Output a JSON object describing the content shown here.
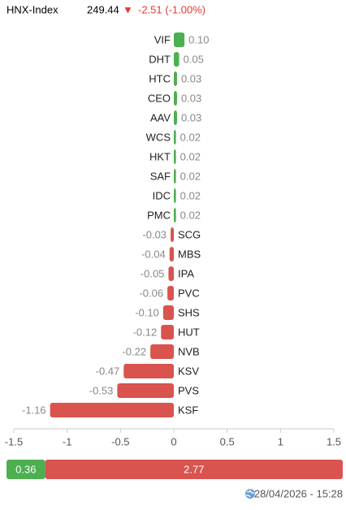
{
  "header": {
    "index_name": "HNX-Index",
    "value": "249.44",
    "arrow": "▼",
    "change": "-2.51 (-1.00%)"
  },
  "chart_data": {
    "type": "bar",
    "orientation": "horizontal",
    "categories": [
      "VIF",
      "DHT",
      "HTC",
      "CEO",
      "AAV",
      "WCS",
      "HKT",
      "SAF",
      "IDC",
      "PMC",
      "SCG",
      "MBS",
      "IPA",
      "PVC",
      "SHS",
      "HUT",
      "NVB",
      "KSV",
      "PVS",
      "KSF"
    ],
    "values": [
      0.1,
      0.05,
      0.03,
      0.03,
      0.03,
      0.02,
      0.02,
      0.02,
      0.02,
      0.02,
      -0.03,
      -0.04,
      -0.05,
      -0.06,
      -0.1,
      -0.12,
      -0.22,
      -0.47,
      -0.53,
      -1.16
    ],
    "value_labels": [
      "0.10",
      "0.05",
      "0.03",
      "0.03",
      "0.03",
      "0.02",
      "0.02",
      "0.02",
      "0.02",
      "0.02",
      "-0.03",
      "-0.04",
      "-0.05",
      "-0.06",
      "-0.10",
      "-0.12",
      "-0.22",
      "-0.47",
      "-0.53",
      "-1.16"
    ],
    "color_positive": "#4caf50",
    "color_negative": "#d9534f",
    "xlim": [
      -1.5,
      1.5
    ],
    "xticks": [
      -1.5,
      -1,
      -0.5,
      0,
      0.5,
      1,
      1.5
    ]
  },
  "footer": {
    "up": 0.36,
    "down": 2.77,
    "timestamp": "28/04/2026 - 15:28"
  }
}
